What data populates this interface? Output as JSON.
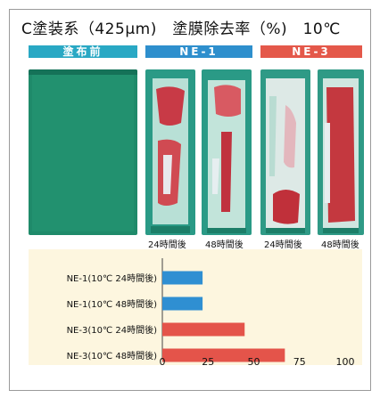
{
  "title": "C塗装系（425µm)　塗膜除去率（%)　10℃",
  "headers": {
    "before": "塗布前",
    "ne1": "NE-1",
    "ne3": "NE-3"
  },
  "photo_captions": [
    "24時間後",
    "48時間後",
    "24時間後",
    "48時間後"
  ],
  "colors": {
    "teal_header": "#29a8c4",
    "blue_header": "#2e8fcd",
    "red_header": "#e4584a",
    "bar_blue": "#2f8fd2",
    "bar_red": "#e4544a",
    "panel_green": "#1f8a6a",
    "chart_bg": "#fdf6df"
  },
  "chart_data": {
    "type": "bar",
    "orientation": "horizontal",
    "categories": [
      "NE-1(10℃  24時間後)",
      "NE-1(10℃  48時間後)",
      "NE-3(10℃  24時間後)",
      "NE-3(10℃  48時間後)"
    ],
    "values": [
      22,
      22,
      45,
      67
    ],
    "bar_colors": [
      "#2f8fd2",
      "#2f8fd2",
      "#e4544a",
      "#e4544a"
    ],
    "xlim": [
      0,
      100
    ],
    "xticks": [
      "0",
      "25",
      "50",
      "75",
      "100"
    ],
    "grid": false
  }
}
